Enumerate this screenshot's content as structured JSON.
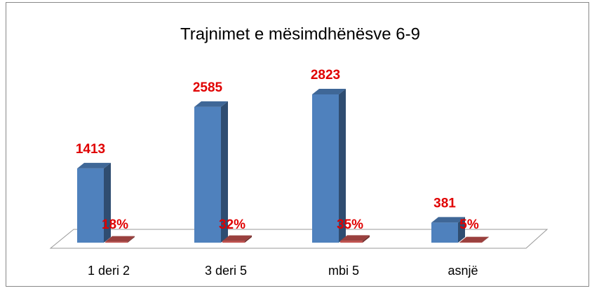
{
  "chart_data": {
    "type": "bar3d",
    "title": "Trajnimet e mësimdhënësve 6-9",
    "categories": [
      "1 deri 2",
      "3 deri 5",
      "mbi 5",
      "asnjë"
    ],
    "series": [
      {
        "color": "#4f81bd",
        "values": [
          1413,
          2585,
          2823,
          381
        ]
      },
      {
        "color": "#c0504d",
        "values": [
          18,
          32,
          35,
          5
        ],
        "value_labels": [
          "18%",
          "32%",
          "35%",
          "5%"
        ]
      }
    ]
  }
}
